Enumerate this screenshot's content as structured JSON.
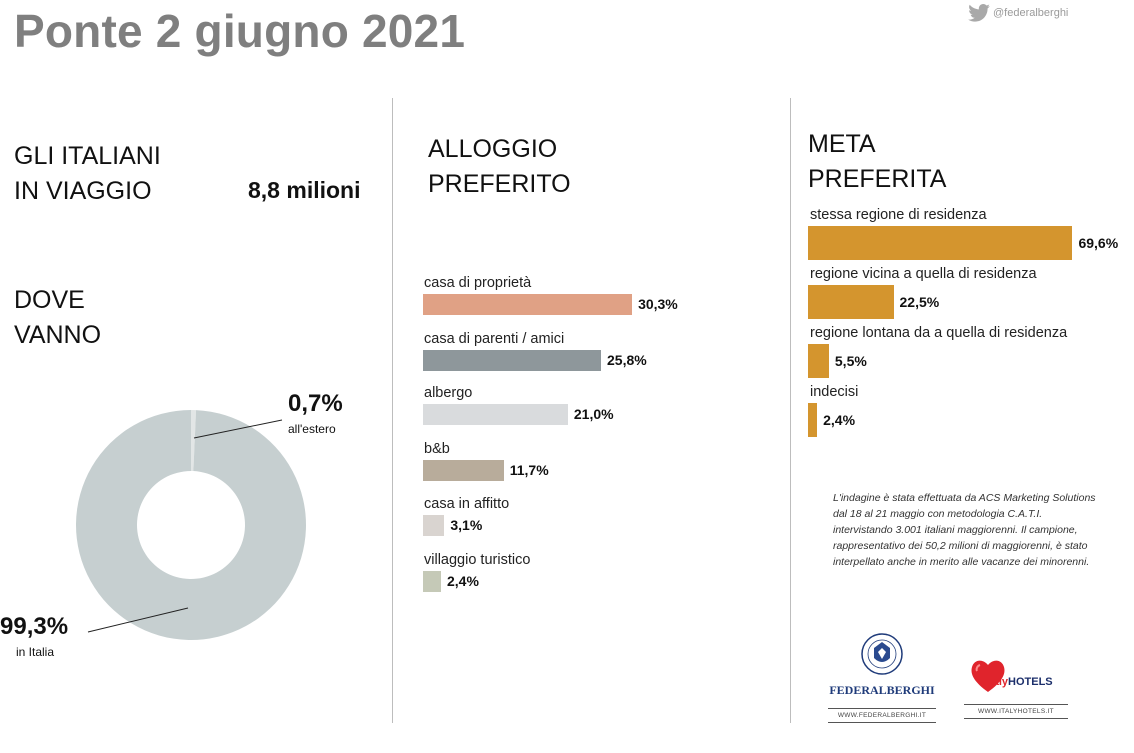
{
  "header": {
    "title": "Ponte 2 giugno 2021",
    "twitter_handle": "@federalberghi"
  },
  "travelers": {
    "label_line1": "GLI ITALIANI",
    "label_line2": "IN VIAGGIO",
    "value": "8,8 milioni"
  },
  "destination": {
    "heading_line1": "DOVE",
    "heading_line2": "VANNO"
  },
  "accommodation": {
    "heading_line1": "ALLOGGIO",
    "heading_line2": "PREFERITO"
  },
  "preferred_destination": {
    "heading_line1": "META",
    "heading_line2": "PREFERITA"
  },
  "note": "L'indagine è stata effettuata da ACS Marketing Solutions dal 18 al 21 maggio con metodologia C.A.T.I. intervistando 3.001 italiani maggiorenni. Il campione, rappresentativo dei 50,2 milioni di maggiorenni, è stato interpellato anche in merito alle vacanze dei minorenni.",
  "logos": {
    "federalberghi_name": "FEDERALBERGHI",
    "federalberghi_url": "WWW.FEDERALBERGHI.IT",
    "italyhotels_name_a": "italy",
    "italyhotels_name_b": "HOTELS",
    "italyhotels_url": "WWW.ITALYHOTELS.IT"
  },
  "chart_data": [
    {
      "type": "pie",
      "slices": [
        {
          "label": "all'estero",
          "value": 0.7,
          "display": "0,7%",
          "color": "#e2e6e6"
        },
        {
          "label": "in Italia",
          "value": 99.3,
          "display": "99,3%",
          "color": "#c6cfd0"
        }
      ]
    },
    {
      "type": "bar",
      "orientation": "horizontal",
      "categories": [
        "casa di proprietà",
        "casa di parenti / amici",
        "albergo",
        "b&b",
        "casa in affitto",
        "villaggio turistico"
      ],
      "values": [
        30.3,
        25.8,
        21.0,
        11.7,
        3.1,
        2.4
      ],
      "labels": [
        "30,3%",
        "25,8%",
        "21,0%",
        "11,7%",
        "3,1%",
        "2,4%"
      ],
      "colors": [
        "#e0a185",
        "#8e979b",
        "#d9dbdd",
        "#b8ac9b",
        "#d9d4d0",
        "#c5c9b7"
      ]
    },
    {
      "type": "bar",
      "orientation": "horizontal",
      "categories": [
        "stessa regione di residenza",
        "regione vicina a quella di residenza",
        "regione lontana da a quella di residenza",
        "indecisi"
      ],
      "values": [
        69.6,
        22.5,
        5.5,
        2.4
      ],
      "labels": [
        "69,6%",
        "22,5%",
        "5,5%",
        "2,4%"
      ],
      "color": "#d4952e"
    }
  ]
}
